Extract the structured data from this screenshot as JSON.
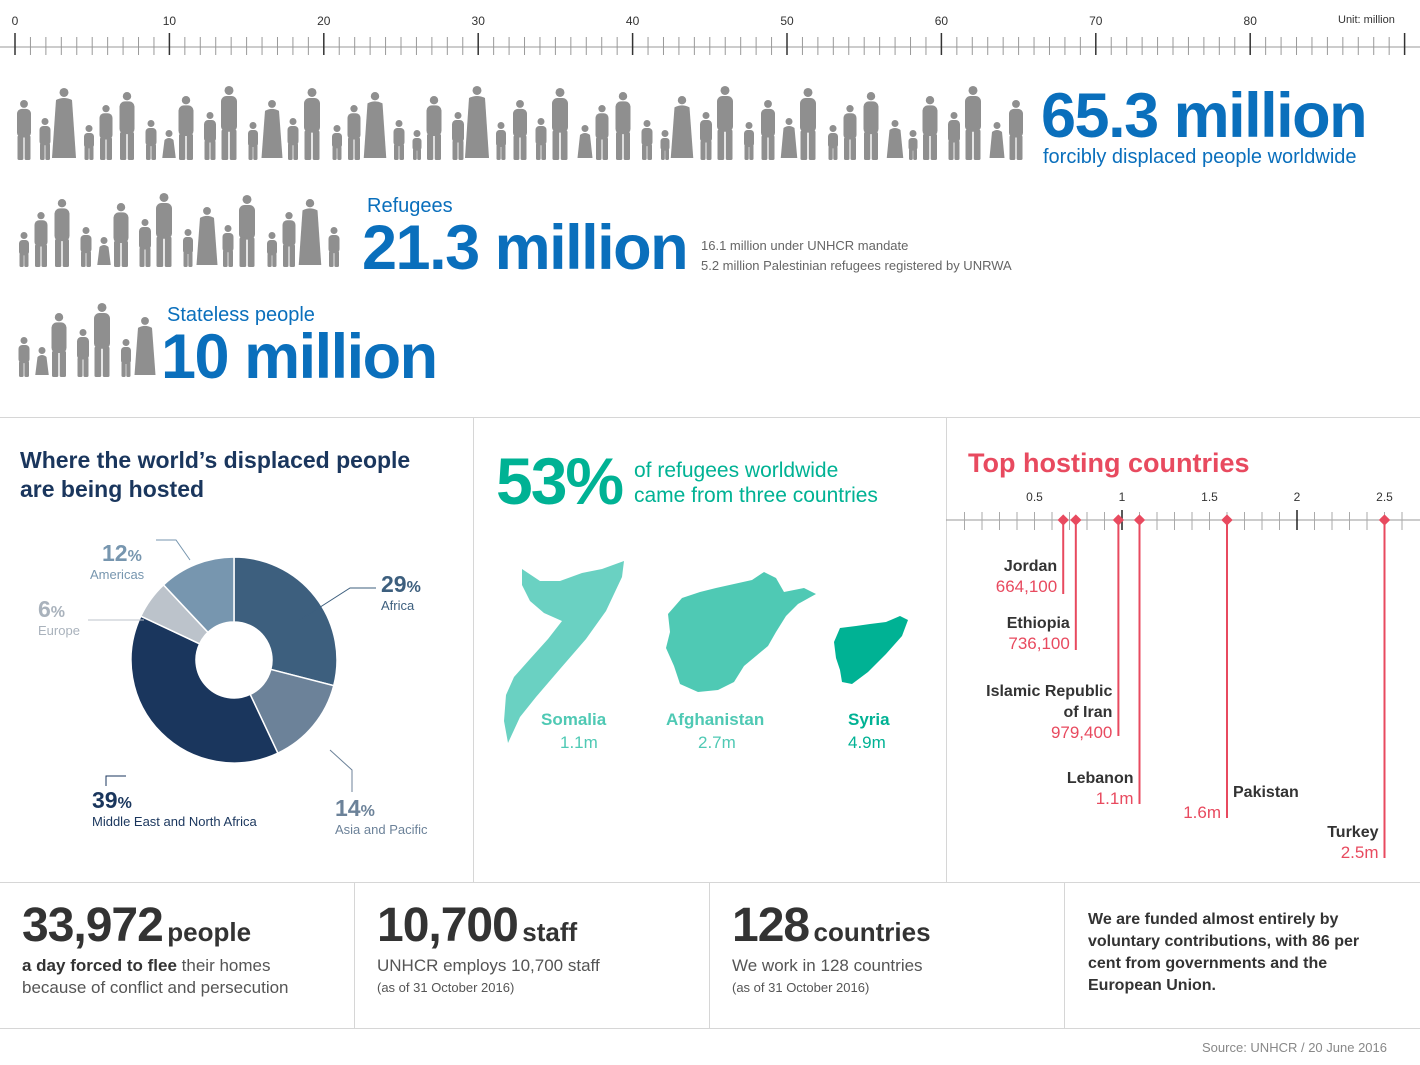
{
  "scale": {
    "unit_label": "Unit: million",
    "ticks": [
      "0",
      "10",
      "20",
      "30",
      "40",
      "50",
      "60",
      "70",
      "80"
    ]
  },
  "displaced": {
    "value": "65.3 million",
    "caption": "forcibly displaced people worldwide",
    "amount_million": 65.3
  },
  "refugees": {
    "label": "Refugees",
    "value": "21.3 million",
    "note1": "16.1 million under UNHCR mandate",
    "note2": "5.2 million Palestinian refugees registered by UNRWA",
    "amount_million": 21.3
  },
  "stateless": {
    "label": "Stateless people",
    "value": "10 million",
    "amount_million": 10
  },
  "hosting": {
    "title_line1": "Where the world’s displaced people",
    "title_line2": "are being hosted",
    "regions": [
      {
        "pct": "29",
        "name": "Africa",
        "value": 29,
        "color": "#3d5f7e"
      },
      {
        "pct": "14",
        "name": "Asia and Pacific",
        "value": 14,
        "color": "#6c8299"
      },
      {
        "pct": "39",
        "name": "Middle East and North Africa",
        "value": 39,
        "color": "#1a365d"
      },
      {
        "pct": "6",
        "name": "Europe",
        "value": 6,
        "color": "#bcc3cb"
      },
      {
        "pct": "12",
        "name": "Americas",
        "value": 12,
        "color": "#7796af"
      }
    ],
    "pct_sign": "%"
  },
  "origin": {
    "big": "53%",
    "line1": "of refugees worldwide",
    "line2": "came from three countries",
    "countries": [
      {
        "name": "Somalia",
        "value": "1.1m",
        "color": "#6ad1c2"
      },
      {
        "name": "Afghanistan",
        "value": "2.7m",
        "color": "#4fc9b4"
      },
      {
        "name": "Syria",
        "value": "4.9m",
        "color": "#00b294"
      }
    ]
  },
  "top_hosting": {
    "title": "Top hosting countries",
    "axis_ticks": [
      "0.5",
      "1",
      "1.5",
      "2",
      "2.5"
    ],
    "countries": [
      {
        "name1": "Jordan",
        "name2": "",
        "value": "664,100",
        "amount": 0.6641
      },
      {
        "name1": "Ethiopia",
        "name2": "",
        "value": "736,100",
        "amount": 0.7361
      },
      {
        "name1": "Islamic Republic",
        "name2": "of Iran",
        "value": "979,400",
        "amount": 0.9794
      },
      {
        "name1": "Lebanon",
        "name2": "",
        "value": "1.1m",
        "amount": 1.1
      },
      {
        "name1": "Pakistan",
        "name2": "",
        "value": "1.6m",
        "amount": 1.6
      },
      {
        "name1": "Turkey",
        "name2": "",
        "value": "2.5m",
        "amount": 2.5
      }
    ]
  },
  "stats": [
    {
      "big": "33,972",
      "unit": "people",
      "line1_bold": "a day forced to flee",
      "line1_rest": " their homes",
      "line2": "because of conflict and persecution",
      "small": ""
    },
    {
      "big": "10,700",
      "unit": "staff",
      "line1_bold": "",
      "line1_rest": "UNHCR employs 10,700 staff",
      "line2": "",
      "small": "(as of 31 October 2016)"
    },
    {
      "big": "128",
      "unit": "countries",
      "line1_bold": "",
      "line1_rest": "We work in 128 countries",
      "line2": "",
      "small": "(as of 31 October 2016)"
    }
  ],
  "funding": {
    "line1": "We are funded almost entirely by",
    "line2": "voluntary contributions, with 86 per",
    "line3": "cent from governments and the",
    "line4": "European Union."
  },
  "source": "Source: UNHCR / 20 June 2016",
  "colors": {
    "blue": "#0a6fbc",
    "navy": "#1a365d",
    "teal": "#00b294",
    "red": "#e84a5f",
    "gray": "#8c8c8c"
  },
  "chart_data": [
    {
      "type": "bar",
      "categories": [
        "forcibly displaced people worldwide",
        "Refugees",
        "Stateless people"
      ],
      "values": [
        65.3,
        21.3,
        10
      ],
      "unit": "Unit: million",
      "xlim": [
        0,
        90
      ]
    },
    {
      "type": "pie",
      "title": "Where the world’s displaced people are being hosted",
      "categories": [
        "Africa",
        "Asia and Pacific",
        "Middle East and North Africa",
        "Europe",
        "Americas"
      ],
      "values": [
        29,
        14,
        39,
        6,
        12
      ]
    },
    {
      "type": "scatter",
      "title": "Top hosting countries",
      "categories": [
        "Jordan",
        "Ethiopia",
        "Islamic Republic of Iran",
        "Lebanon",
        "Pakistan",
        "Turkey"
      ],
      "values": [
        0.6641,
        0.7361,
        0.9794,
        1.1,
        1.6,
        2.5
      ],
      "xlim": [
        0,
        2.7
      ]
    }
  ]
}
